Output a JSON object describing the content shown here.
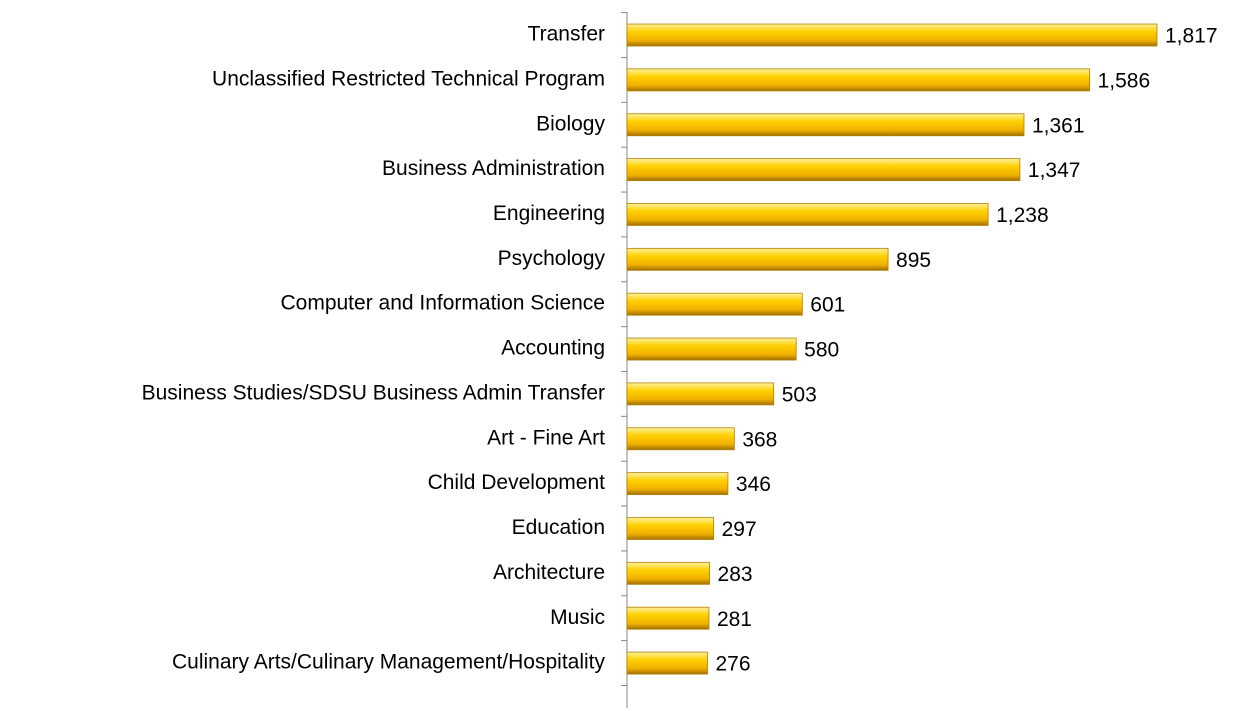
{
  "chart_data": {
    "type": "hbar",
    "categories": [
      "Transfer",
      "Unclassified Restricted Technical Program",
      "Biology",
      "Business Administration",
      "Engineering",
      "Psychology",
      "Computer and Information Science",
      "Accounting",
      "Business Studies/SDSU Business Admin Transfer",
      "Art - Fine Art",
      "Child Development",
      "Education",
      "Architecture",
      "Music",
      "Culinary Arts/Culinary Management/Hospitality"
    ],
    "values": [
      1817,
      1586,
      1361,
      1347,
      1238,
      895,
      601,
      580,
      503,
      368,
      346,
      297,
      283,
      281,
      276
    ],
    "value_labels": [
      "1,817",
      "1,586",
      "1,361",
      "1,347",
      "1,238",
      "895",
      "601",
      "580",
      "503",
      "368",
      "346",
      "297",
      "283",
      "281",
      "276"
    ],
    "color": "#ffc000"
  }
}
